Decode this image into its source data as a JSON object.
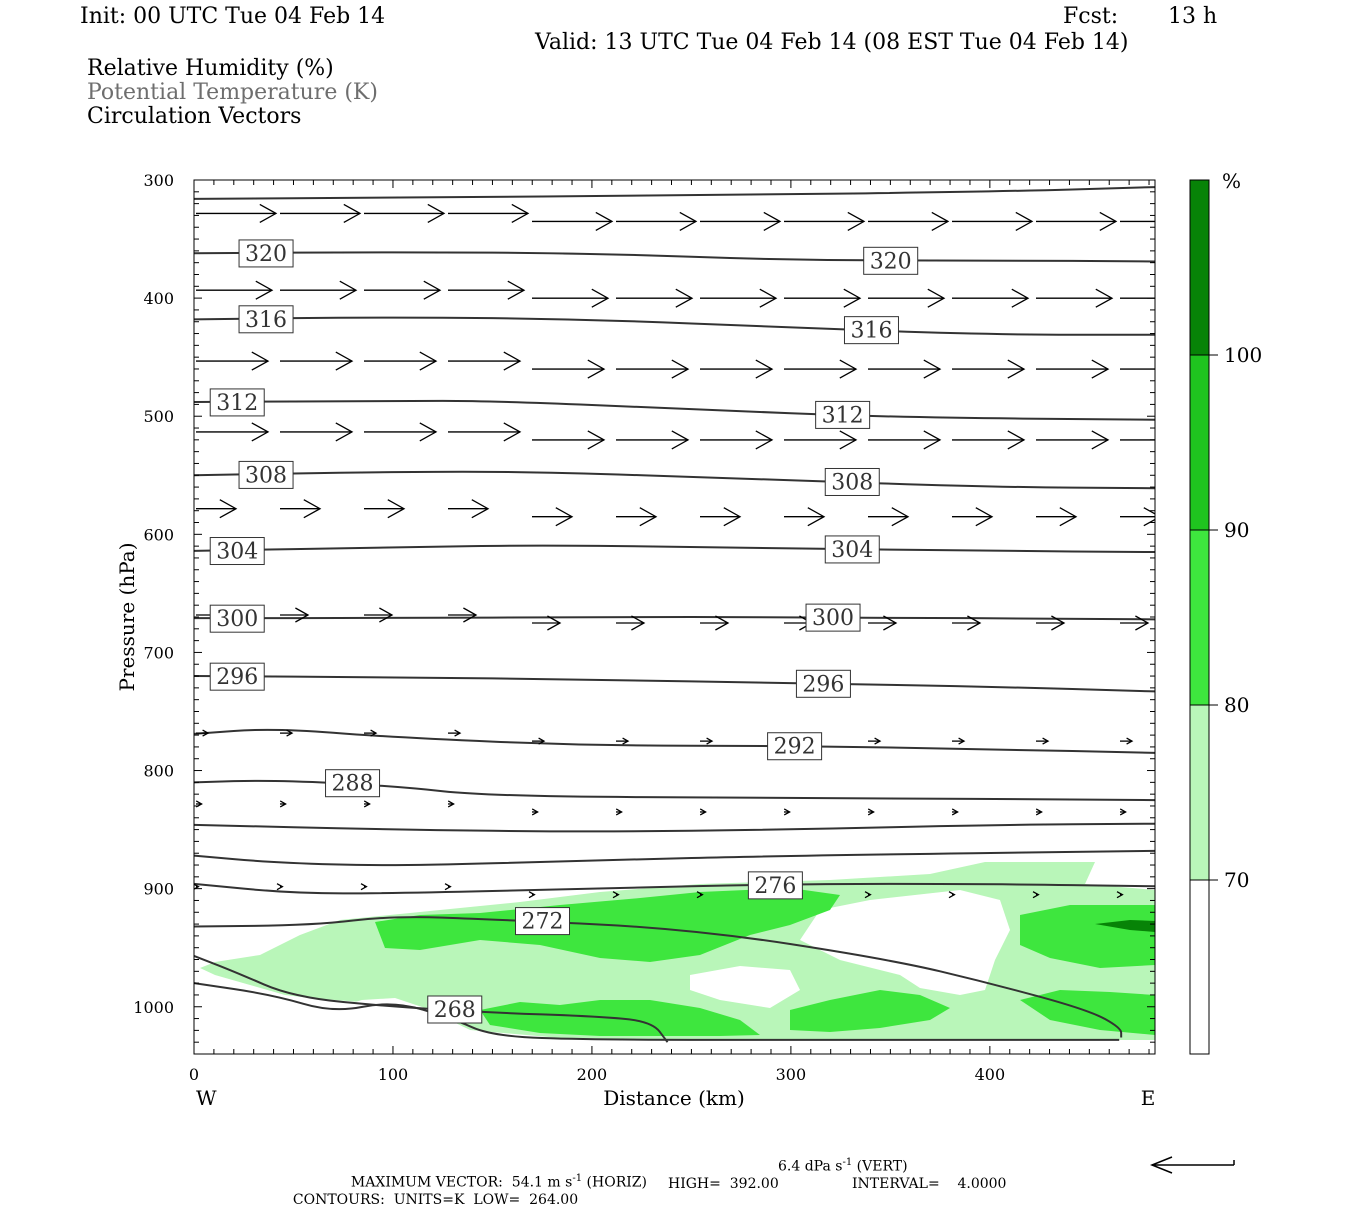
{
  "header": {
    "init": "Init: 00 UTC Tue 04 Feb 14",
    "fcst_label": "Fcst:",
    "fcst_value": "13 h",
    "valid": "Valid: 13 UTC Tue 04 Feb 14 (08 EST Tue 04 Feb 14)"
  },
  "fields": {
    "rh": "Relative Humidity (%)",
    "theta": "Potential Temperature (K)",
    "vectors": "Circulation Vectors"
  },
  "colorbar": {
    "unit": "%",
    "labels": [
      "100",
      "90",
      "80",
      "70"
    ],
    "colors": {
      "c70": "#b9f6b9",
      "c80": "#3ee63e",
      "c90": "#1fc41f",
      "c100": "#078307"
    }
  },
  "footer": {
    "max_vector_label": "MAXIMUM VECTOR:",
    "max_horiz": "54.1 m s",
    "max_horiz_unit": "(HORIZ)",
    "max_vert": "6.4 dPa s",
    "max_vert_unit": "(VERT)",
    "contours_label": "CONTOURS:",
    "units": "UNITS=K",
    "low": "LOW=  264.00",
    "high": "HIGH=  392.00",
    "interval": "INTERVAL=    4.0000"
  },
  "chart_data": {
    "type": "line",
    "title": "",
    "xlabel": "Distance (km)",
    "ylabel": "Pressure (hPa)",
    "xlim": [
      0,
      483
    ],
    "ylim": [
      1040,
      300
    ],
    "x_ticks": [
      0,
      100,
      200,
      300,
      400
    ],
    "y_ticks": [
      300,
      400,
      500,
      600,
      700,
      800,
      900,
      1000
    ],
    "x_end_labels": {
      "left": "W",
      "right": "E"
    },
    "theta_contours": [
      {
        "label": "",
        "points": [
          [
            0,
            316
          ],
          [
            100,
            315
          ],
          [
            250,
            313
          ],
          [
            400,
            310
          ],
          [
            483,
            306
          ]
        ]
      },
      {
        "label": "320",
        "points": [
          [
            0,
            362
          ],
          [
            100,
            361
          ],
          [
            200,
            362
          ],
          [
            300,
            368
          ],
          [
            400,
            368
          ],
          [
            483,
            369
          ]
        ]
      },
      {
        "label": "316",
        "points": [
          [
            0,
            418
          ],
          [
            100,
            416
          ],
          [
            200,
            418
          ],
          [
            300,
            425
          ],
          [
            400,
            431
          ],
          [
            483,
            431
          ]
        ]
      },
      {
        "label": "312",
        "points": [
          [
            0,
            488
          ],
          [
            100,
            487
          ],
          [
            150,
            487
          ],
          [
            250,
            494
          ],
          [
            350,
            501
          ],
          [
            483,
            503
          ]
        ]
      },
      {
        "label": "308",
        "points": [
          [
            0,
            550
          ],
          [
            100,
            547
          ],
          [
            170,
            547
          ],
          [
            280,
            553
          ],
          [
            400,
            560
          ],
          [
            483,
            561
          ]
        ]
      },
      {
        "label": "304",
        "points": [
          [
            0,
            614
          ],
          [
            100,
            611
          ],
          [
            180,
            609
          ],
          [
            300,
            612
          ],
          [
            400,
            614
          ],
          [
            483,
            615
          ]
        ]
      },
      {
        "label": "300",
        "points": [
          [
            0,
            671
          ],
          [
            100,
            671
          ],
          [
            200,
            670
          ],
          [
            300,
            670
          ],
          [
            483,
            672
          ]
        ]
      },
      {
        "label": "296",
        "points": [
          [
            0,
            720
          ],
          [
            100,
            721
          ],
          [
            200,
            723
          ],
          [
            300,
            726
          ],
          [
            400,
            729
          ],
          [
            483,
            733
          ]
        ]
      },
      {
        "label": "292",
        "points": [
          [
            0,
            769
          ],
          [
            40,
            764
          ],
          [
            100,
            772
          ],
          [
            200,
            779
          ],
          [
            300,
            779
          ],
          [
            400,
            782
          ],
          [
            483,
            785
          ]
        ]
      },
      {
        "label": "288",
        "points": [
          [
            0,
            810
          ],
          [
            40,
            808
          ],
          [
            100,
            813
          ],
          [
            150,
            822
          ],
          [
            300,
            823
          ],
          [
            483,
            825
          ]
        ]
      },
      {
        "label": "",
        "points": [
          [
            0,
            846
          ],
          [
            100,
            850
          ],
          [
            200,
            852
          ],
          [
            300,
            850
          ],
          [
            400,
            846
          ],
          [
            483,
            845
          ]
        ]
      },
      {
        "label": "",
        "points": [
          [
            0,
            872
          ],
          [
            40,
            878
          ],
          [
            100,
            881
          ],
          [
            200,
            876
          ],
          [
            300,
            872
          ],
          [
            483,
            868
          ]
        ]
      },
      {
        "label": "276",
        "points": [
          [
            0,
            896
          ],
          [
            50,
            904
          ],
          [
            100,
            904
          ],
          [
            200,
            900
          ],
          [
            300,
            896
          ],
          [
            400,
            896
          ],
          [
            483,
            898
          ]
        ]
      },
      {
        "label": "272",
        "points": [
          [
            0,
            932
          ],
          [
            60,
            931
          ],
          [
            100,
            923
          ],
          [
            150,
            926
          ],
          [
            250,
            934
          ],
          [
            350,
            960
          ],
          [
            400,
            980
          ],
          [
            450,
            1003
          ],
          [
            466,
            1018
          ],
          [
            466,
            1026
          ]
        ]
      },
      {
        "label": "268",
        "points": [
          [
            0,
            957
          ],
          [
            20,
            970
          ],
          [
            50,
            992
          ],
          [
            100,
            1000
          ],
          [
            150,
            1005
          ],
          [
            200,
            1008
          ],
          [
            230,
            1012
          ],
          [
            238,
            1030
          ]
        ]
      },
      {
        "label": "",
        "points": [
          [
            0,
            980
          ],
          [
            40,
            990
          ],
          [
            70,
            1005
          ],
          [
            100,
            995
          ],
          [
            130,
            1010
          ],
          [
            150,
            1025
          ],
          [
            200,
            1028
          ],
          [
            300,
            1028
          ],
          [
            465,
            1028
          ]
        ]
      }
    ],
    "circulation_vectors": {
      "levels": [
        330,
        395,
        455,
        515,
        580,
        670,
        770,
        830,
        900
      ],
      "relative_length": [
        1.0,
        0.95,
        0.9,
        0.9,
        0.5,
        0.35,
        0.15,
        0.07,
        0.03
      ]
    },
    "rh_shading": {
      "thresholds": [
        70,
        80,
        90,
        100
      ]
    }
  }
}
